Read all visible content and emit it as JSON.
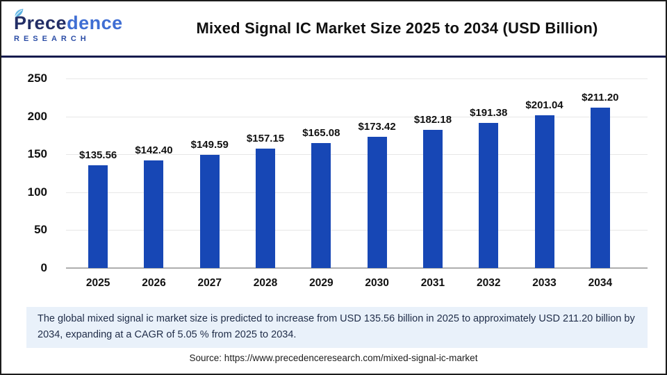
{
  "header": {
    "logo": {
      "brand_part1": "Prece",
      "brand_part2": "dence",
      "subtitle": "RESEARCH"
    },
    "title": "Mixed Signal IC Market Size 2025 to 2034 (USD Billion)"
  },
  "chart_data": {
    "type": "bar",
    "title": "Mixed Signal IC Market Size 2025 to 2034 (USD Billion)",
    "categories": [
      "2025",
      "2026",
      "2027",
      "2028",
      "2029",
      "2030",
      "2031",
      "2032",
      "2033",
      "2034"
    ],
    "values": [
      135.56,
      142.4,
      149.59,
      157.15,
      165.08,
      173.42,
      182.18,
      191.38,
      201.04,
      211.2
    ],
    "value_labels": [
      "$135.56",
      "$142.40",
      "$149.59",
      "$157.15",
      "$165.08",
      "$173.42",
      "$182.18",
      "$191.38",
      "$201.04",
      "$211.20"
    ],
    "xlabel": "",
    "ylabel": "",
    "ylim": [
      0,
      250
    ],
    "yticks": [
      "250",
      "200",
      "150",
      "100",
      "50",
      "0"
    ],
    "grid": true,
    "legend_position": "none",
    "bar_color": "#1747b5"
  },
  "caption": {
    "text": "The global mixed signal ic market size is predicted to increase from USD 135.56 billion in 2025 to approximately USD 211.20 billion by 2034, expanding at a CAGR of 5.05 % from 2025 to 2034."
  },
  "source": {
    "text": "Source: https://www.precedenceresearch.com/mixed-signal-ic-market"
  }
}
